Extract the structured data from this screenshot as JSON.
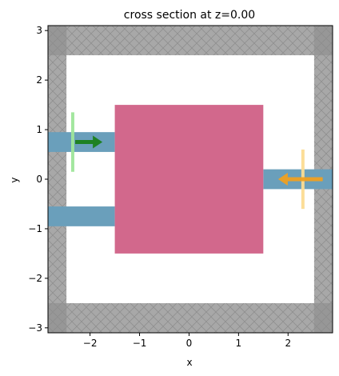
{
  "chart_data": {
    "type": "simulation-cross-section",
    "title": "cross section at z=0.00",
    "xlabel": "x",
    "ylabel": "y",
    "xlim": [
      -2.85,
      2.9
    ],
    "ylim": [
      -3.1,
      3.1
    ],
    "xticks": [
      -2,
      -1,
      0,
      1,
      2
    ],
    "xtick_labels": [
      "−2",
      "−1",
      "0",
      "1",
      "2"
    ],
    "yticks": [
      -3,
      -2,
      -1,
      0,
      1,
      2,
      3
    ],
    "ytick_labels": [
      "−3",
      "−2",
      "−1",
      "0",
      "1",
      "2",
      "3"
    ],
    "pml_thickness": 0.5,
    "pml_color": "#a8a8a8",
    "pml_corner_color": "#8c8c8c",
    "structures": [
      {
        "name": "waveguide-top-left",
        "x": [
          -2.85,
          -1.5
        ],
        "y": [
          0.55,
          0.95
        ],
        "color": "#6a9fbb"
      },
      {
        "name": "waveguide-bottom-left",
        "x": [
          -2.85,
          -1.5
        ],
        "y": [
          -0.95,
          -0.55
        ],
        "color": "#6a9fbb"
      },
      {
        "name": "waveguide-right",
        "x": [
          1.5,
          2.9
        ],
        "y": [
          -0.2,
          0.2
        ],
        "color": "#6a9fbb"
      },
      {
        "name": "box",
        "x": [
          -1.5,
          1.5
        ],
        "y": [
          -1.5,
          1.5
        ],
        "color": "#d2688c"
      }
    ],
    "sources": [
      {
        "name": "source-plane",
        "x": -2.35,
        "y": [
          0.15,
          1.35
        ],
        "color": "#9ee69a"
      }
    ],
    "monitors": [
      {
        "name": "monitor-plane",
        "x": 2.3,
        "y": [
          -0.6,
          0.6
        ],
        "color": "#fcdc92"
      }
    ],
    "arrows": [
      {
        "name": "source-direction-arrow",
        "from": [
          -2.3,
          0.75
        ],
        "to": [
          -1.75,
          0.75
        ],
        "color": "#1a7f1a"
      },
      {
        "name": "monitor-direction-arrow",
        "from": [
          2.7,
          0.0
        ],
        "to": [
          1.8,
          0.0
        ],
        "color": "#f0a020"
      }
    ]
  }
}
